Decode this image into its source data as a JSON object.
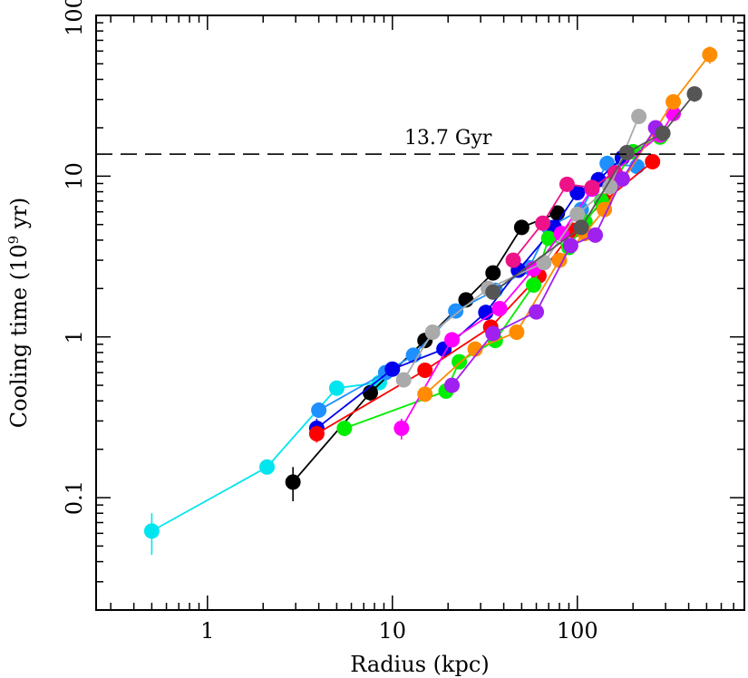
{
  "chart_data": {
    "type": "scatter",
    "title": "",
    "xlabel": "Radius (kpc)",
    "ylabel": "Cooling time (10",
    "ylabel_sup": "9",
    "ylabel_tail": " yr)",
    "xscale": "log",
    "yscale": "log",
    "xlim": [
      0.25,
      800
    ],
    "ylim": [
      0.02,
      100
    ],
    "x_ticks": [
      {
        "value": 1,
        "label": "1"
      },
      {
        "value": 10,
        "label": "10"
      },
      {
        "value": 100,
        "label": "100"
      }
    ],
    "y_ticks": [
      {
        "value": 0.1,
        "label": "0.1"
      },
      {
        "value": 1,
        "label": "1"
      },
      {
        "value": 10,
        "label": "10"
      },
      {
        "value": 100,
        "label": "100"
      }
    ],
    "reference_line": {
      "y": 13.7,
      "style": "dashed",
      "label": "13.7 Gyr",
      "label_x": 20
    },
    "series": [
      {
        "color": "#00e5ee",
        "x": [
          0.5,
          2.1,
          5.0,
          8.5
        ],
        "y": [
          0.062,
          0.155,
          0.48,
          0.52
        ],
        "yerr": [
          0.018,
          0.01,
          0.03,
          0.03
        ]
      },
      {
        "color": "#000000",
        "x": [
          2.9,
          7.6,
          15,
          25,
          35,
          50,
          78
        ],
        "y": [
          0.125,
          0.45,
          0.95,
          1.7,
          2.5,
          4.8,
          5.9
        ],
        "yerr": [
          0.03,
          0.05,
          0.08,
          0.1,
          0.15,
          0.3,
          0.4
        ]
      },
      {
        "color": "#1e90ff",
        "x": [
          4.0,
          9.2,
          13,
          22,
          36,
          55,
          70,
          105,
          145,
          210
        ],
        "y": [
          0.35,
          0.6,
          0.77,
          1.45,
          1.95,
          2.7,
          4.8,
          6.2,
          12,
          11.5
        ],
        "yerr": [
          0.03,
          0.04,
          0.05,
          0.1,
          0.15,
          0.2,
          0.3,
          0.5,
          1,
          1
        ]
      },
      {
        "color": "#0000ee",
        "x": [
          3.9,
          10,
          19,
          32,
          48,
          75,
          100,
          130,
          175
        ],
        "y": [
          0.27,
          0.63,
          0.84,
          1.42,
          2.6,
          4.8,
          7.9,
          9.5,
          13
        ],
        "yerr": [
          0.04,
          0.05,
          0.05,
          0.1,
          0.2,
          0.3,
          0.5,
          0.7,
          1
        ]
      },
      {
        "color": "#ff0000",
        "x": [
          3.9,
          15,
          34,
          62,
          95,
          140,
          255
        ],
        "y": [
          0.25,
          0.62,
          1.15,
          2.4,
          4.6,
          7.0,
          12.3
        ],
        "yerr": [
          0.03,
          0.04,
          0.08,
          0.15,
          0.3,
          0.5,
          1
        ]
      },
      {
        "color": "#00ee00",
        "x": [
          5.5,
          19.5,
          23,
          36,
          58,
          70,
          90,
          110,
          135,
          160,
          200,
          280
        ],
        "y": [
          0.27,
          0.46,
          0.7,
          0.95,
          2.1,
          4.1,
          3.6,
          5.2,
          7.0,
          9.5,
          14.2,
          17.5
        ],
        "yerr": [
          0.02,
          0.03,
          0.04,
          0.06,
          0.15,
          0.3,
          0.3,
          0.4,
          0.5,
          0.7,
          1,
          1.2
        ]
      },
      {
        "color": "#ff00ff",
        "x": [
          11.2,
          21,
          38,
          58,
          82,
          120,
          280,
          330
        ],
        "y": [
          0.27,
          0.96,
          1.5,
          2.65,
          4.4,
          8.3,
          18,
          24.5
        ],
        "yerr": [
          0.04,
          0.05,
          0.1,
          0.2,
          0.3,
          0.6,
          1.5,
          2
        ]
      },
      {
        "color": "#ee1289",
        "x": [
          45,
          65,
          88,
          120,
          160
        ],
        "y": [
          3.0,
          5.1,
          8.9,
          8.5,
          10.5
        ],
        "yerr": [
          0.2,
          0.3,
          0.6,
          0.6,
          0.8
        ]
      },
      {
        "color": "#ff8c00",
        "x": [
          15,
          28,
          47,
          80,
          110,
          140,
          330,
          520
        ],
        "y": [
          0.44,
          0.84,
          1.07,
          3.0,
          4.4,
          6.2,
          29,
          57
        ],
        "yerr": [
          0.03,
          0.05,
          0.1,
          0.2,
          0.3,
          0.5,
          3,
          7
        ]
      },
      {
        "color": "#a020f0",
        "x": [
          21,
          35,
          60,
          92,
          125,
          175,
          265
        ],
        "y": [
          0.5,
          1.05,
          1.43,
          3.7,
          4.3,
          9.6,
          20
        ],
        "yerr": [
          0.04,
          0.08,
          0.1,
          0.3,
          0.3,
          0.7,
          1.5
        ]
      },
      {
        "color": "#aaaaaa",
        "x": [
          11.5,
          16.5,
          33,
          66,
          100,
          150,
          215
        ],
        "y": [
          0.54,
          1.07,
          2.0,
          2.9,
          5.8,
          8.6,
          23.5
        ],
        "yerr": [
          0.04,
          0.06,
          0.15,
          0.2,
          0.4,
          0.7,
          2
        ]
      },
      {
        "color": "#555555",
        "x": [
          35,
          105,
          185,
          290,
          430
        ],
        "y": [
          1.9,
          4.8,
          14,
          18.5,
          32.5
        ],
        "yerr": [
          0.15,
          0.4,
          1,
          1.5,
          3.5
        ]
      }
    ]
  }
}
